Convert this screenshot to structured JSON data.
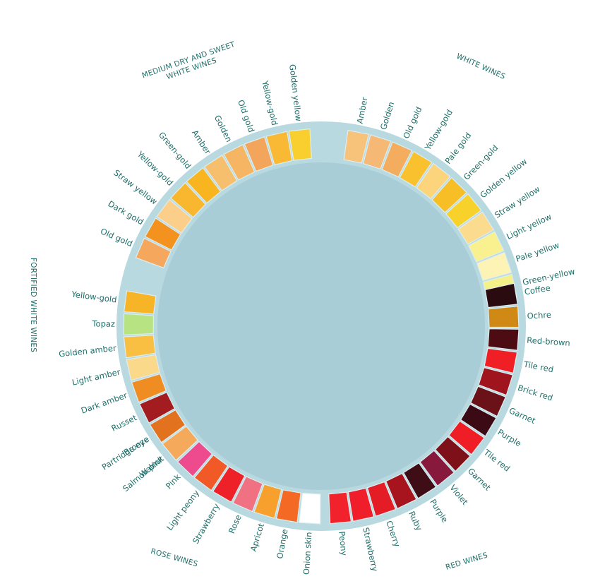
{
  "colors": {
    "text": "#1f6f6a",
    "disc": "#a9cdd6",
    "disc_rim": "#b8d9df",
    "swatch_edge": "#dceef1"
  },
  "groups": [
    {
      "id": "white",
      "label_lines": [
        "WHITE WINES"
      ],
      "swatches": [
        {
          "name": "Amber",
          "color": "#f7c27a"
        },
        {
          "name": "Golden",
          "color": "#f6b875"
        },
        {
          "name": "Old gold",
          "color": "#f4ad5e"
        },
        {
          "name": "Yellow-gold",
          "color": "#f9c12e"
        },
        {
          "name": "Pale gold",
          "color": "#fbd47c"
        },
        {
          "name": "Green-gold",
          "color": "#f8be25"
        },
        {
          "name": "Golden yellow",
          "color": "#f8d12b"
        },
        {
          "name": "Straw yellow",
          "color": "#fbdc8e"
        },
        {
          "name": "Light yellow",
          "color": "#f9f08f"
        },
        {
          "name": "Pale yellow",
          "color": "#fdf3b5"
        },
        {
          "name": "Green-yellow",
          "color": "#f3f188"
        }
      ]
    },
    {
      "id": "red",
      "label_lines": [
        "RED WINES"
      ],
      "swatches": [
        {
          "name": "Coffee",
          "color": "#2a0c10"
        },
        {
          "name": "Ochre",
          "color": "#d18916"
        },
        {
          "name": "Red-brown",
          "color": "#4c0c12"
        },
        {
          "name": "Tile red",
          "color": "#ef1f25"
        },
        {
          "name": "Brick red",
          "color": "#a0141e"
        },
        {
          "name": "Garnet",
          "color": "#6b1118"
        },
        {
          "name": "Purple",
          "color": "#3b0a14"
        },
        {
          "name": "Tile red",
          "color": "#ee1d26"
        },
        {
          "name": "Garnet",
          "color": "#7e1019"
        },
        {
          "name": "Violet",
          "color": "#871a3c"
        },
        {
          "name": "Purple",
          "color": "#3f0d16"
        },
        {
          "name": "Ruby",
          "color": "#a8141d"
        },
        {
          "name": "Cherry",
          "color": "#e31c25"
        },
        {
          "name": "Strawberry",
          "color": "#f01e2a"
        },
        {
          "name": "Peony",
          "color": "#f2222d"
        }
      ]
    },
    {
      "id": "rose",
      "label_lines": [
        "ROSE WINES"
      ],
      "swatches": [
        {
          "name": "Onion skin",
          "color": "#ffffff"
        },
        {
          "name": "Orange",
          "color": "#f46a24"
        },
        {
          "name": "Apricot",
          "color": "#f8a02e"
        },
        {
          "name": "Rose",
          "color": "#f07182"
        },
        {
          "name": "Strawberry",
          "color": "#ee2028"
        },
        {
          "name": "Light peony",
          "color": "#f15a26"
        },
        {
          "name": "Pink",
          "color": "#ee4b8e"
        },
        {
          "name": "Salmon pink",
          "color": "#ee3b26"
        },
        {
          "name": "Partridge eye",
          "color": "#f3805e"
        }
      ]
    },
    {
      "id": "fortified",
      "label_lines": [
        "FORTIFIED WHITE WINES"
      ],
      "swatches": [
        {
          "name": "Walnut",
          "color": "#f5a95a"
        },
        {
          "name": "Bronze",
          "color": "#e2721e"
        },
        {
          "name": "Russet",
          "color": "#a31c1f"
        },
        {
          "name": "Dark amber",
          "color": "#f08d22"
        },
        {
          "name": "Light amber",
          "color": "#fbd98b"
        },
        {
          "name": "Golden amber",
          "color": "#f9bf43"
        },
        {
          "name": "Topaz",
          "color": "#b8e383"
        },
        {
          "name": "Yellow-gold",
          "color": "#f8b427"
        }
      ]
    },
    {
      "id": "medium",
      "label_lines": [
        "MEDIUM DRY AND SWEET",
        "WHITE WINES"
      ],
      "swatches": [
        {
          "name": "Old gold",
          "color": "#f5a85d"
        },
        {
          "name": "Dark gold",
          "color": "#f4921f"
        },
        {
          "name": "Straw yellow",
          "color": "#fbcf89"
        },
        {
          "name": "Yellow-gold",
          "color": "#f9b730"
        },
        {
          "name": "Green-gold",
          "color": "#f9b51f"
        },
        {
          "name": "Amber",
          "color": "#f6bf6e"
        },
        {
          "name": "Golden",
          "color": "#f5b562"
        },
        {
          "name": "Old gold",
          "color": "#f3a65b"
        },
        {
          "name": "Yellow-gold",
          "color": "#f9b934"
        },
        {
          "name": "Golden yellow",
          "color": "#f9cf2f"
        }
      ]
    }
  ]
}
